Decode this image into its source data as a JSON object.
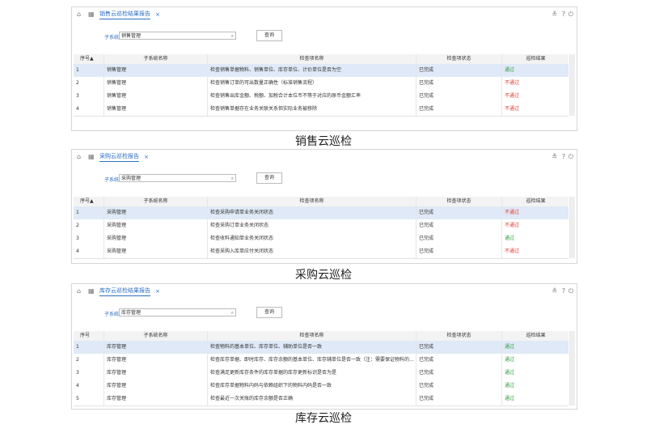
{
  "panels": [
    {
      "tab_title": "销售云巡检结果报告",
      "search_label": "子系统",
      "search_value": "销售管理",
      "button": "查询",
      "columns": [
        "序号▲",
        "子系统名称",
        "检查项名称",
        "检查项状态",
        "巡检结果"
      ],
      "rows": [
        [
          "1",
          "销售管理",
          "检查销售单据物料、销售单位、库存单位、计价单位是否为空",
          "已完成",
          "通过"
        ],
        [
          "2",
          "销售管理",
          "检查销售订单的可出数量正确性（标准销售流程）",
          "已完成",
          "不通过"
        ],
        [
          "3",
          "销售管理",
          "检查销售出库金额、税额、加税合计本位币不等于对应的原币金额汇率",
          "已完成",
          "不通过"
        ],
        [
          "4",
          "销售管理",
          "检查销售单据存在业务关联关系但实际业务被移除",
          "已完成",
          "不通过"
        ]
      ],
      "result_colors": [
        "#2e9d3a",
        "#e03c31",
        "#e03c31",
        "#e03c31"
      ],
      "caption": "销售云巡检"
    },
    {
      "tab_title": "采购云巡检报告",
      "search_label": "子系统",
      "search_value": "采购管理",
      "button": "查询",
      "columns": [
        "序号▲",
        "子系统名称",
        "检查项名称",
        "检查项状态",
        "巡检结果"
      ],
      "rows": [
        [
          "1",
          "采购管理",
          "检查采购申请单业务关闭状态",
          "已完成",
          "不通过"
        ],
        [
          "2",
          "采购管理",
          "检查采购订单业务关闭状态",
          "已完成",
          "不通过"
        ],
        [
          "3",
          "采购管理",
          "检查收料通知单业务关闭状态",
          "已完成",
          "通过"
        ],
        [
          "4",
          "采购管理",
          "检查采购入库单应付关闭状态",
          "已完成",
          "不通过"
        ]
      ],
      "result_colors": [
        "#e03c31",
        "#e03c31",
        "#2e9d3a",
        "#e03c31"
      ],
      "caption": "采购云巡检"
    },
    {
      "tab_title": "库存云巡检结果报告",
      "search_label": "子系统",
      "search_value": "库存管理",
      "button": "查询",
      "columns": [
        "序号",
        "子系统名称",
        "检查项名称",
        "检查项状态",
        "巡检结果"
      ],
      "rows": [
        [
          "1",
          "库存管理",
          "检查物料的基本单位、库存单位、辅助单位是否一致",
          "已完成",
          "通过"
        ],
        [
          "2",
          "库存管理",
          "检查库存单据、即时库存、库存余额的基本单位、库存辅单位是否一致（注：需要保证物料的单位与初...",
          "已完成",
          "通过"
        ],
        [
          "3",
          "库存管理",
          "检查满足更新库存条件的库存单据的库存更新标识是否为是",
          "已完成",
          "通过"
        ],
        [
          "4",
          "库存管理",
          "检查库存单据物料内码与依赖组织下的物料内码是否一致",
          "已完成",
          "通过"
        ],
        [
          "5",
          "库存管理",
          "检查最近一次关账的库存余额是否正确",
          "已完成",
          "通过"
        ]
      ],
      "result_colors": [
        "#2e9d3a",
        "#2e9d3a",
        "#2e9d3a",
        "#2e9d3a",
        "#2e9d3a"
      ],
      "caption": "库存云巡检"
    }
  ]
}
